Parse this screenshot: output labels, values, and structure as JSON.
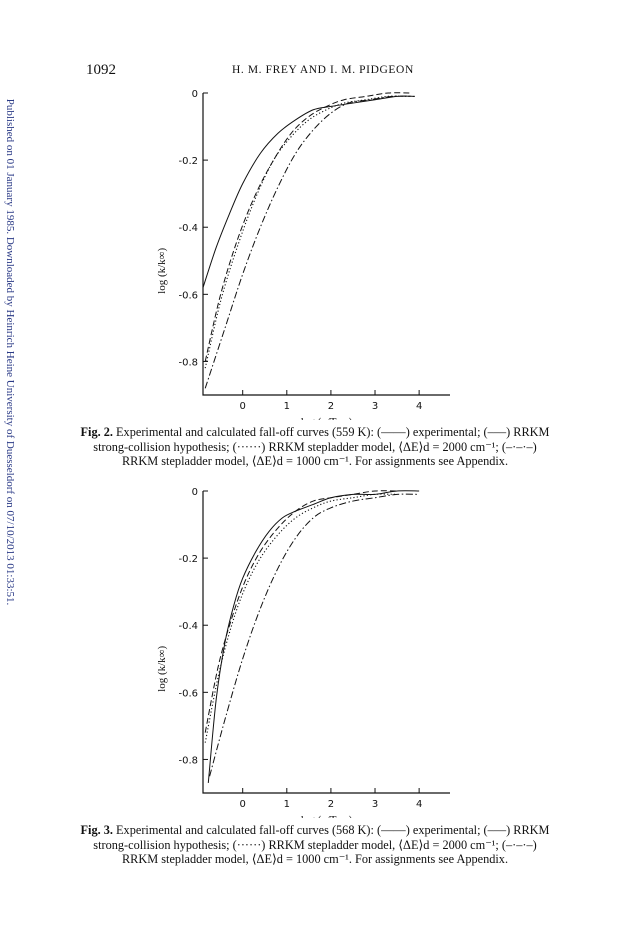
{
  "header": {
    "page_number": "1092",
    "running_head": "H. M. FREY AND I. M. PIDGEON"
  },
  "side_note": "Published on 01 January 1985. Downloaded by Heinrich Heine University of Duesseldorf on 07/10/2013 01:33:51.",
  "figures": [
    {
      "caption_label": "Fig. 2.",
      "caption_text": "Experimental and calculated fall-off curves (559 K): (——) experimental; (–––) RRKM strong-collision hypothesis; (······) RRKM stepladder model, ⟨ΔE⟩d = 2000 cm⁻¹; (–·–·–) RRKM stepladder model, ⟨ΔE⟩d = 1000 cm⁻¹. For assignments see Appendix."
    },
    {
      "caption_label": "Fig. 3.",
      "caption_text": "Experimental and calculated fall-off curves (568 K): (——) experimental; (–––) RRKM strong-collision hypothesis; (······) RRKM stepladder model, ⟨ΔE⟩d = 2000 cm⁻¹; (–·–·–) RRKM stepladder model, ⟨ΔE⟩d = 1000 cm⁻¹. For assignments see Appendix."
    }
  ],
  "chart_data": [
    {
      "type": "line",
      "xlabel": "log (p/Torr)",
      "ylabel": "log (k/k∞)",
      "xlim": [
        -0.9,
        4.7
      ],
      "ylim": [
        -0.9,
        0
      ],
      "xticks": [
        "0",
        "1",
        "2",
        "3",
        "4"
      ],
      "yticks": [
        "0",
        "-0.2",
        "-0.4",
        "-0.6",
        "-0.8"
      ],
      "series": [
        {
          "style": "solid",
          "x": [
            -0.9,
            -0.6,
            -0.3,
            0.0,
            0.4,
            0.8,
            1.2,
            1.6,
            2.0,
            2.5,
            3.0,
            3.5,
            3.9
          ],
          "y": [
            -0.58,
            -0.46,
            -0.36,
            -0.27,
            -0.18,
            -0.12,
            -0.08,
            -0.05,
            -0.04,
            -0.03,
            -0.02,
            -0.01,
            -0.01
          ]
        },
        {
          "style": "dashed",
          "x": [
            -0.85,
            -0.5,
            -0.1,
            0.3,
            0.7,
            1.1,
            1.5,
            1.9,
            2.3,
            2.8,
            3.3,
            3.8
          ],
          "y": [
            -0.8,
            -0.6,
            -0.43,
            -0.3,
            -0.2,
            -0.12,
            -0.07,
            -0.04,
            -0.02,
            -0.01,
            0.0,
            0.0
          ]
        },
        {
          "style": "dotted",
          "x": [
            -0.85,
            -0.5,
            -0.1,
            0.3,
            0.7,
            1.1,
            1.5,
            1.9,
            2.3,
            2.8,
            3.3,
            3.8
          ],
          "y": [
            -0.82,
            -0.62,
            -0.45,
            -0.31,
            -0.2,
            -0.13,
            -0.08,
            -0.05,
            -0.03,
            -0.02,
            -0.01,
            -0.01
          ]
        },
        {
          "style": "dashdot",
          "x": [
            -0.85,
            -0.4,
            0.0,
            0.4,
            0.8,
            1.2,
            1.6,
            2.0,
            2.4,
            2.9,
            3.4,
            3.9
          ],
          "y": [
            -0.88,
            -0.7,
            -0.54,
            -0.4,
            -0.28,
            -0.18,
            -0.11,
            -0.06,
            -0.03,
            -0.02,
            -0.01,
            -0.01
          ]
        }
      ]
    },
    {
      "type": "line",
      "xlabel": "log (p/Torr)",
      "ylabel": "log (k/k∞)",
      "xlim": [
        -0.9,
        4.7
      ],
      "ylim": [
        -0.9,
        0
      ],
      "xticks": [
        "0",
        "1",
        "2",
        "3",
        "4"
      ],
      "yticks": [
        "0",
        "-0.2",
        "-0.4",
        "-0.6",
        "-0.8"
      ],
      "series": [
        {
          "style": "solid",
          "x": [
            -0.78,
            -0.6,
            -0.4,
            -0.2,
            0.0,
            0.3,
            0.6,
            0.9,
            1.2,
            1.6,
            2.0,
            2.5,
            3.0,
            3.5,
            4.0
          ],
          "y": [
            -0.87,
            -0.62,
            -0.45,
            -0.34,
            -0.26,
            -0.18,
            -0.12,
            -0.08,
            -0.06,
            -0.04,
            -0.02,
            -0.01,
            -0.01,
            0.0,
            0.0
          ]
        },
        {
          "style": "dashed",
          "x": [
            -0.85,
            -0.55,
            -0.25,
            0.05,
            0.4,
            0.8,
            1.2,
            1.6,
            2.0,
            2.5,
            3.0,
            3.5
          ],
          "y": [
            -0.72,
            -0.52,
            -0.38,
            -0.27,
            -0.18,
            -0.11,
            -0.06,
            -0.03,
            -0.02,
            -0.01,
            0.0,
            0.0
          ]
        },
        {
          "style": "dotted",
          "x": [
            -0.85,
            -0.55,
            -0.25,
            0.05,
            0.4,
            0.8,
            1.2,
            1.6,
            2.0,
            2.5,
            3.0,
            3.5
          ],
          "y": [
            -0.75,
            -0.55,
            -0.4,
            -0.29,
            -0.2,
            -0.13,
            -0.08,
            -0.05,
            -0.03,
            -0.02,
            -0.01,
            -0.01
          ]
        },
        {
          "style": "dashdot",
          "x": [
            -0.75,
            -0.4,
            0.0,
            0.4,
            0.8,
            1.2,
            1.6,
            2.0,
            2.5,
            3.0,
            3.5,
            4.0
          ],
          "y": [
            -0.85,
            -0.68,
            -0.5,
            -0.35,
            -0.23,
            -0.14,
            -0.08,
            -0.05,
            -0.03,
            -0.02,
            -0.01,
            -0.01
          ]
        }
      ]
    }
  ]
}
